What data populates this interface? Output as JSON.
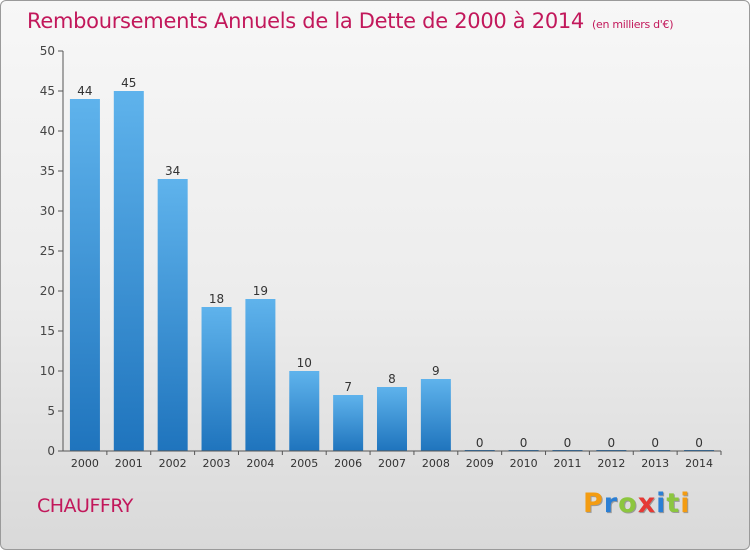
{
  "title": "Remboursements Annuels de la Dette de 2000 à 2014",
  "subtitle": "(en milliers d'€)",
  "town": "CHAUFFRY",
  "logo": {
    "letters": [
      "P",
      "r",
      "o",
      "x",
      "i",
      "t",
      "i"
    ],
    "colors": [
      "#f39c12",
      "#2b7fd4",
      "#8cc63f",
      "#e53935",
      "#2b7fd4",
      "#8cc63f",
      "#f39c12"
    ]
  },
  "colors": {
    "accent": "#c2185b",
    "bar_top": "#5fb3ec",
    "bar_bottom": "#1f74bd",
    "axis": "#555555"
  },
  "chart_data": {
    "type": "bar",
    "categories": [
      "2000",
      "2001",
      "2002",
      "2003",
      "2004",
      "2005",
      "2006",
      "2007",
      "2008",
      "2009",
      "2010",
      "2011",
      "2012",
      "2013",
      "2014"
    ],
    "values": [
      44,
      45,
      34,
      18,
      19,
      10,
      7,
      8,
      9,
      0,
      0,
      0,
      0,
      0,
      0
    ],
    "ylim": [
      0,
      50
    ],
    "yticks": [
      0,
      5,
      10,
      15,
      20,
      25,
      30,
      35,
      40,
      45,
      50
    ],
    "title": "Remboursements Annuels de la Dette de 2000 à 2014",
    "xlabel": "",
    "ylabel": "",
    "grid": false,
    "legend": "none"
  }
}
